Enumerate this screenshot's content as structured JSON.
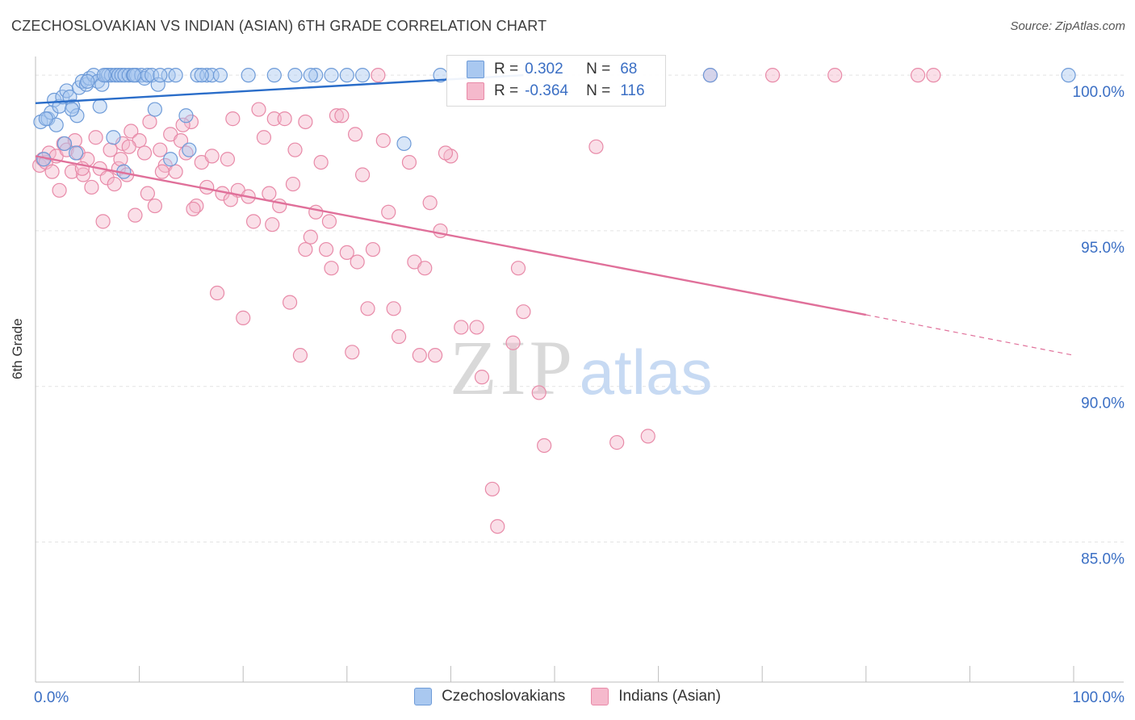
{
  "header": {
    "title": "CZECHOSLOVAKIAN VS INDIAN (ASIAN) 6TH GRADE CORRELATION CHART",
    "source": "Source: ZipAtlas.com"
  },
  "colors": {
    "blue_fill": "#a9c8f0",
    "blue_stroke": "#6e9bd8",
    "blue_line": "#2a6dc9",
    "pink_fill": "#f5b9cc",
    "pink_stroke": "#e88aa8",
    "pink_line": "#e0709a",
    "tick_text": "#3b6fc4"
  },
  "legend": {
    "rows": [
      {
        "r_label": "R =",
        "r_value": "0.302",
        "n_label": "N =",
        "n_value": "68"
      },
      {
        "r_label": "R =",
        "r_value": "-0.364",
        "n_label": "N =",
        "n_value": "116"
      }
    ]
  },
  "bottom_legend": {
    "series_a": "Czechoslovakians",
    "series_b": "Indians (Asian)"
  },
  "watermark": {
    "zip": "ZIP",
    "atlas": "atlas"
  },
  "chart_data": {
    "type": "scatter",
    "title": "CZECHOSLOVAKIAN VS INDIAN (ASIAN) 6TH GRADE CORRELATION CHART",
    "xlabel": "",
    "ylabel": "6th Grade",
    "xlim": [
      0,
      100
    ],
    "ylim": [
      80.5,
      100.6
    ],
    "x_tick_labels": [
      "0.0%",
      "100.0%"
    ],
    "y_ticks": [
      85,
      90,
      95,
      100
    ],
    "y_tick_labels": [
      "85.0%",
      "90.0%",
      "95.0%",
      "100.0%"
    ],
    "grid": true,
    "series": [
      {
        "name": "Czechoslovakians",
        "color": "blue",
        "trend": {
          "x0": 0,
          "y0": 99.1,
          "x1": 47,
          "y1": 100.0,
          "dash_to": null
        },
        "points": [
          [
            0.5,
            98.5
          ],
          [
            0.8,
            97.3
          ],
          [
            1.2,
            98.6
          ],
          [
            1.5,
            98.8
          ],
          [
            1.8,
            99.2
          ],
          [
            2.0,
            98.4
          ],
          [
            2.3,
            99.0
          ],
          [
            2.6,
            99.3
          ],
          [
            3.0,
            99.5
          ],
          [
            3.3,
            99.3
          ],
          [
            3.6,
            99.0
          ],
          [
            3.9,
            97.5
          ],
          [
            4.2,
            99.6
          ],
          [
            4.5,
            99.8
          ],
          [
            4.9,
            99.7
          ],
          [
            5.2,
            99.9
          ],
          [
            5.6,
            100
          ],
          [
            6.0,
            99.8
          ],
          [
            6.4,
            99.7
          ],
          [
            6.8,
            100
          ],
          [
            7.0,
            100
          ],
          [
            7.3,
            100
          ],
          [
            7.7,
            100
          ],
          [
            8.0,
            100
          ],
          [
            8.3,
            100
          ],
          [
            8.6,
            100
          ],
          [
            9.0,
            100
          ],
          [
            9.4,
            100
          ],
          [
            9.7,
            100
          ],
          [
            10.2,
            100
          ],
          [
            10.5,
            99.9
          ],
          [
            10.8,
            100
          ],
          [
            11.2,
            100
          ],
          [
            11.8,
            99.7
          ],
          [
            12.8,
            100
          ],
          [
            13.5,
            100
          ],
          [
            14.5,
            98.7
          ],
          [
            15.6,
            100
          ],
          [
            16.5,
            100
          ],
          [
            17.0,
            100
          ],
          [
            17.8,
            100
          ],
          [
            20.5,
            100
          ],
          [
            23.0,
            100
          ],
          [
            25.0,
            100
          ],
          [
            27.0,
            100
          ],
          [
            28.5,
            100
          ],
          [
            30.0,
            100
          ],
          [
            31.5,
            100
          ],
          [
            35.5,
            97.8
          ],
          [
            39.0,
            100
          ],
          [
            65.0,
            100
          ],
          [
            99.5,
            100
          ],
          [
            6.2,
            99.0
          ],
          [
            7.5,
            98.0
          ],
          [
            11.5,
            98.9
          ],
          [
            13.0,
            97.3
          ],
          [
            14.8,
            97.6
          ],
          [
            8.5,
            96.9
          ],
          [
            2.8,
            97.8
          ],
          [
            1.0,
            98.6
          ],
          [
            4.0,
            98.7
          ],
          [
            3.5,
            98.9
          ],
          [
            12.0,
            100
          ],
          [
            16.0,
            100
          ],
          [
            26.5,
            100
          ],
          [
            9.5,
            100
          ],
          [
            5.0,
            99.8
          ],
          [
            6.6,
            100
          ]
        ]
      },
      {
        "name": "Indians (Asian)",
        "color": "pink",
        "trend": {
          "x0": 0,
          "y0": 97.4,
          "x1": 80,
          "y1": 92.3,
          "dash_to": [
            100,
            91.0
          ]
        },
        "points": [
          [
            0.4,
            97.1
          ],
          [
            0.7,
            97.3
          ],
          [
            1.0,
            97.2
          ],
          [
            1.3,
            97.5
          ],
          [
            1.6,
            96.9
          ],
          [
            2.0,
            97.4
          ],
          [
            2.3,
            96.3
          ],
          [
            2.7,
            97.8
          ],
          [
            3.0,
            97.6
          ],
          [
            3.5,
            96.9
          ],
          [
            3.8,
            97.9
          ],
          [
            4.1,
            97.5
          ],
          [
            4.6,
            96.8
          ],
          [
            5.0,
            97.3
          ],
          [
            5.4,
            96.4
          ],
          [
            5.8,
            98.0
          ],
          [
            6.2,
            97.0
          ],
          [
            6.5,
            95.3
          ],
          [
            6.9,
            96.7
          ],
          [
            7.2,
            97.6
          ],
          [
            7.6,
            96.5
          ],
          [
            8.0,
            97.0
          ],
          [
            8.4,
            97.8
          ],
          [
            8.8,
            96.8
          ],
          [
            9.2,
            98.2
          ],
          [
            9.6,
            95.5
          ],
          [
            10.0,
            97.9
          ],
          [
            10.5,
            97.5
          ],
          [
            11.0,
            98.5
          ],
          [
            11.5,
            95.8
          ],
          [
            12.0,
            97.6
          ],
          [
            12.5,
            97.1
          ],
          [
            13.0,
            98.1
          ],
          [
            13.5,
            96.9
          ],
          [
            14.0,
            97.9
          ],
          [
            14.5,
            97.5
          ],
          [
            15.0,
            98.5
          ],
          [
            15.5,
            95.8
          ],
          [
            16.0,
            97.2
          ],
          [
            16.5,
            96.4
          ],
          [
            17.0,
            97.4
          ],
          [
            17.5,
            93.0
          ],
          [
            18.0,
            96.2
          ],
          [
            18.5,
            97.3
          ],
          [
            19.0,
            98.6
          ],
          [
            19.5,
            96.3
          ],
          [
            20.0,
            92.2
          ],
          [
            20.5,
            96.1
          ],
          [
            21.0,
            95.3
          ],
          [
            21.5,
            98.9
          ],
          [
            22.0,
            98.0
          ],
          [
            22.5,
            96.2
          ],
          [
            23.0,
            98.6
          ],
          [
            23.5,
            95.8
          ],
          [
            24.0,
            98.6
          ],
          [
            24.5,
            92.7
          ],
          [
            25.0,
            97.6
          ],
          [
            25.5,
            91.0
          ],
          [
            26.0,
            94.4
          ],
          [
            26.5,
            94.8
          ],
          [
            27.0,
            95.6
          ],
          [
            27.5,
            97.2
          ],
          [
            28.0,
            94.4
          ],
          [
            28.5,
            93.8
          ],
          [
            29.0,
            98.7
          ],
          [
            29.5,
            98.7
          ],
          [
            30.0,
            94.3
          ],
          [
            30.5,
            91.1
          ],
          [
            31.0,
            94.0
          ],
          [
            31.5,
            96.8
          ],
          [
            32.0,
            92.5
          ],
          [
            32.5,
            94.4
          ],
          [
            33.0,
            100
          ],
          [
            34.0,
            95.6
          ],
          [
            34.5,
            92.5
          ],
          [
            35.0,
            91.6
          ],
          [
            36.0,
            97.2
          ],
          [
            36.5,
            94.0
          ],
          [
            37.0,
            91.0
          ],
          [
            37.5,
            93.8
          ],
          [
            38.0,
            95.9
          ],
          [
            38.5,
            91.0
          ],
          [
            39.0,
            95.0
          ],
          [
            40.0,
            97.4
          ],
          [
            41.0,
            91.9
          ],
          [
            42.5,
            91.9
          ],
          [
            43.0,
            90.3
          ],
          [
            44.0,
            86.7
          ],
          [
            44.5,
            85.5
          ],
          [
            46.0,
            91.4
          ],
          [
            46.5,
            93.8
          ],
          [
            47.0,
            92.4
          ],
          [
            48.5,
            89.8
          ],
          [
            49.0,
            88.1
          ],
          [
            54.0,
            97.7
          ],
          [
            56.0,
            88.2
          ],
          [
            59.0,
            88.4
          ],
          [
            65.0,
            100
          ],
          [
            71.0,
            100
          ],
          [
            77.0,
            100
          ],
          [
            85.0,
            100
          ],
          [
            86.5,
            100
          ],
          [
            33.5,
            97.9
          ],
          [
            26.0,
            98.5
          ],
          [
            15.2,
            95.7
          ],
          [
            10.8,
            96.2
          ],
          [
            9.0,
            97.7
          ],
          [
            28.3,
            95.3
          ],
          [
            39.5,
            97.5
          ],
          [
            14.2,
            98.4
          ],
          [
            30.8,
            98.1
          ],
          [
            22.8,
            95.2
          ],
          [
            18.8,
            96.0
          ],
          [
            12.2,
            96.9
          ],
          [
            24.8,
            96.5
          ],
          [
            8.2,
            97.3
          ],
          [
            4.5,
            97.0
          ]
        ]
      }
    ]
  }
}
